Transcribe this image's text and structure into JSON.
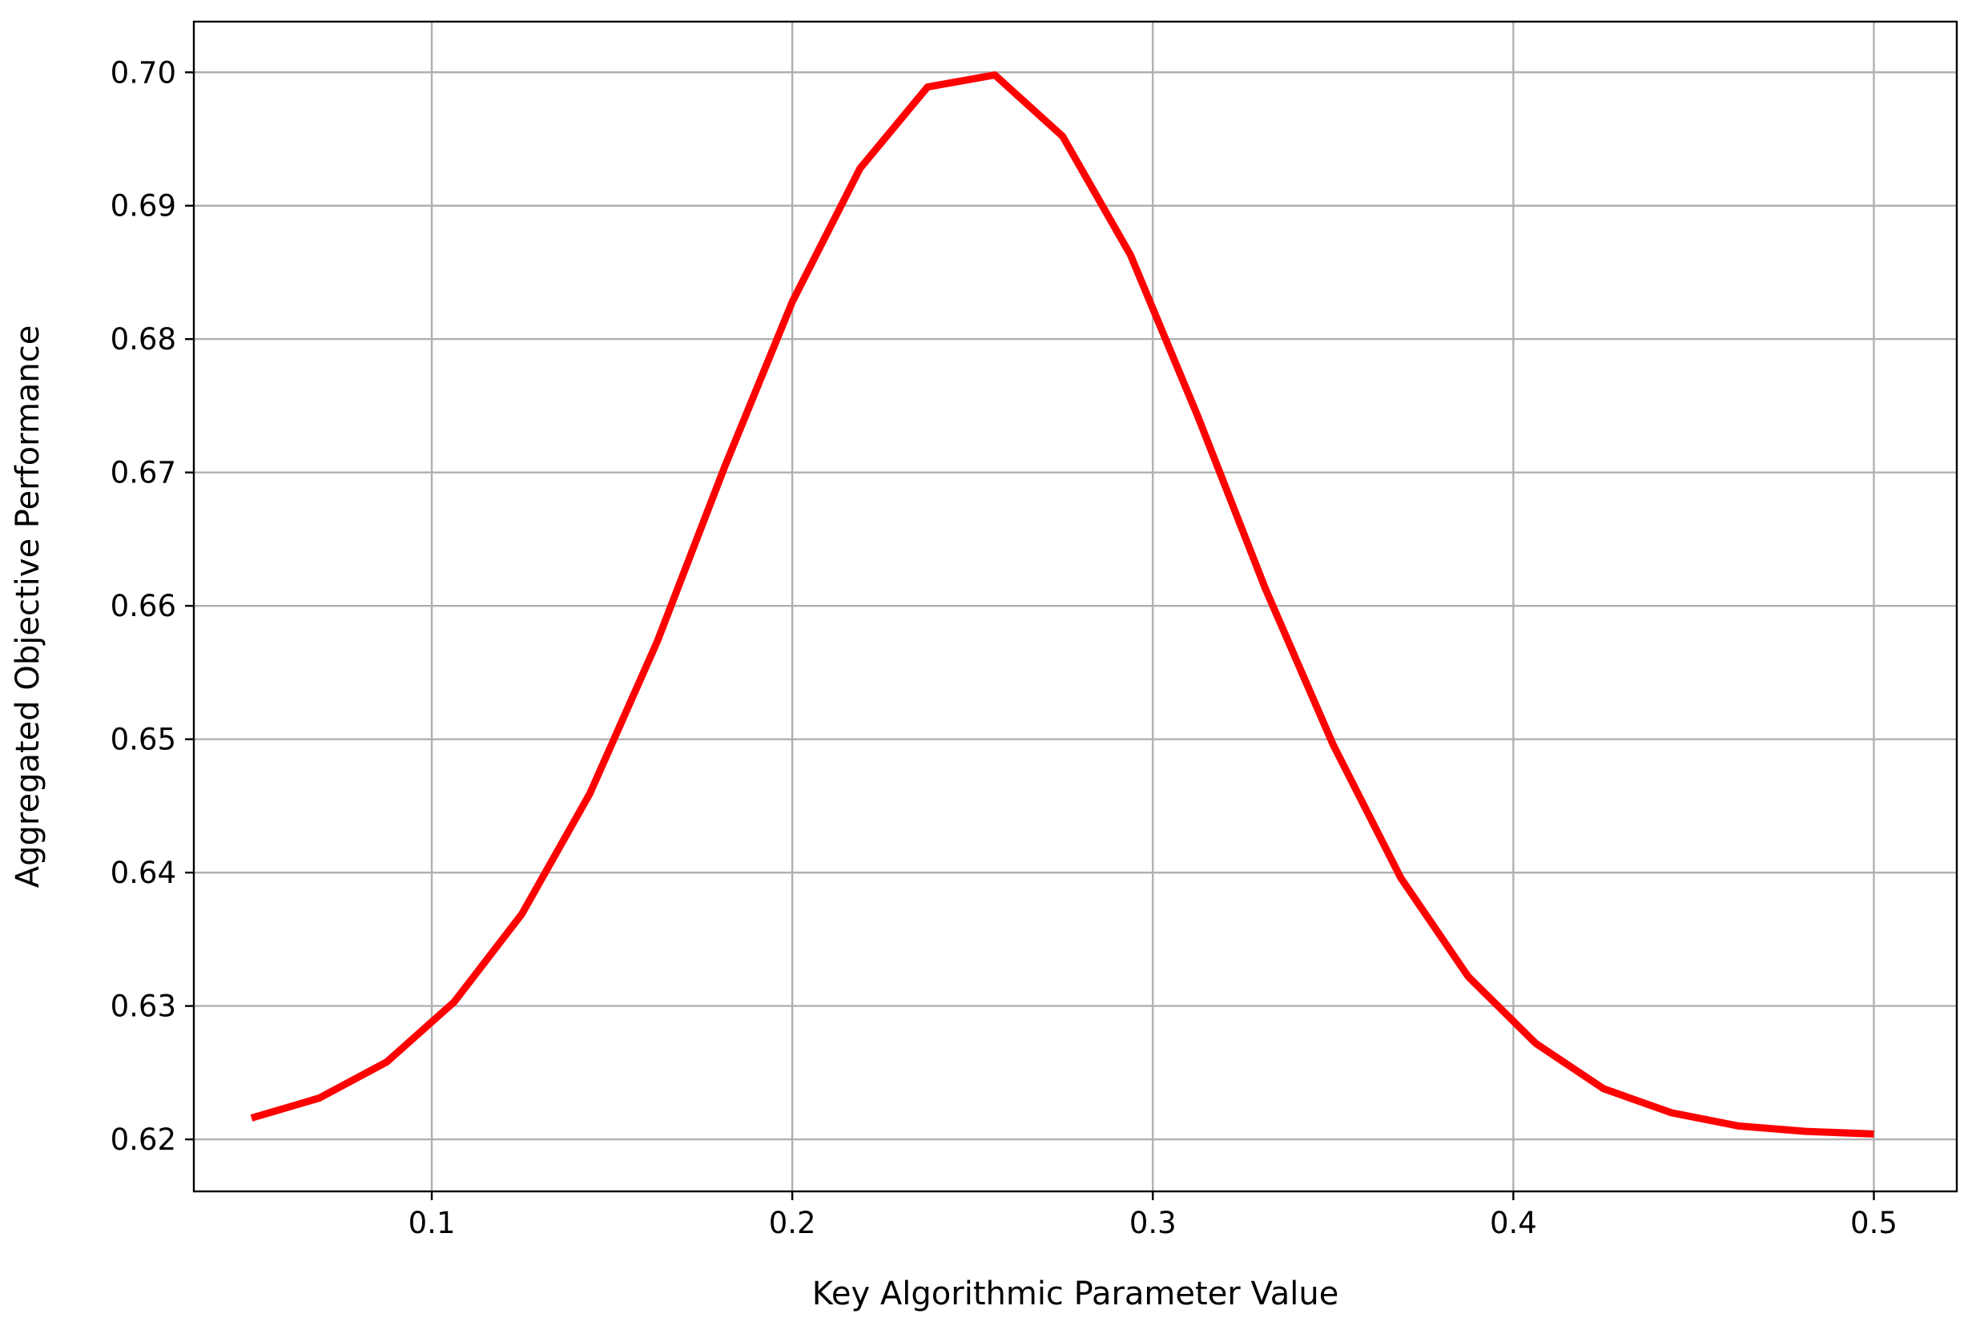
{
  "chart_data": {
    "type": "line",
    "title": "",
    "xlabel": "Key Algorithmic Parameter Value",
    "ylabel": "Aggregated Objective Performance",
    "xlim": [
      0.034,
      0.523
    ],
    "ylim": [
      0.6161,
      0.7038
    ],
    "x_ticks": [
      0.1,
      0.2,
      0.3,
      0.4,
      0.5
    ],
    "x_tick_labels": [
      "0.1",
      "0.2",
      "0.3",
      "0.4",
      "0.5"
    ],
    "y_ticks": [
      0.62,
      0.63,
      0.64,
      0.65,
      0.66,
      0.67,
      0.68,
      0.69,
      0.7
    ],
    "y_tick_labels": [
      "0.62",
      "0.63",
      "0.64",
      "0.65",
      "0.66",
      "0.67",
      "0.68",
      "0.69",
      "0.70"
    ],
    "grid": true,
    "series": [
      {
        "color": "#ff0000",
        "x": [
          0.05,
          0.0688,
          0.0875,
          0.1062,
          0.125,
          0.1438,
          0.1625,
          0.1812,
          0.2,
          0.2188,
          0.2375,
          0.2562,
          0.275,
          0.2938,
          0.3125,
          0.3312,
          0.35,
          0.3688,
          0.3875,
          0.4062,
          0.425,
          0.4438,
          0.4625,
          0.4812,
          0.5
        ],
        "y": [
          0.6216,
          0.6231,
          0.6258,
          0.6303,
          0.6369,
          0.6459,
          0.6573,
          0.6704,
          0.6828,
          0.6928,
          0.6989,
          0.6998,
          0.6952,
          0.6863,
          0.6742,
          0.6613,
          0.6496,
          0.6396,
          0.6322,
          0.6272,
          0.6238,
          0.622,
          0.621,
          0.6206,
          0.6204
        ]
      }
    ]
  }
}
